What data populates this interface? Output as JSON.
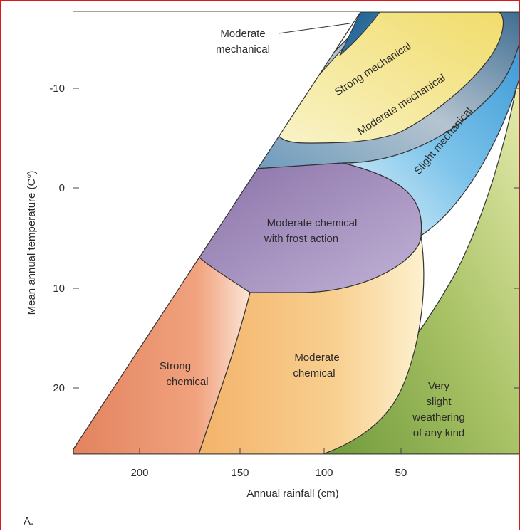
{
  "figure": {
    "panel_letter": "A.",
    "x_axis": {
      "title": "Annual rainfall (cm)",
      "ticks": [
        "200",
        "150",
        "100",
        "50"
      ]
    },
    "y_axis": {
      "title": "Mean annual temperature (C°)",
      "ticks": [
        "-10",
        "0",
        "10",
        "20"
      ]
    },
    "regions": {
      "moderate_mechanical_callout": [
        "Moderate",
        "mechanical"
      ],
      "strong_mechanical": "Strong mechanical",
      "moderate_mechanical": "Moderate mechanical",
      "slight_mechanical": "Slight mechanical",
      "moderate_chemical_frost": [
        "Moderate chemical",
        "with frost action"
      ],
      "strong_chemical": [
        "Strong",
        "chemical"
      ],
      "moderate_chemical": [
        "Moderate",
        "chemical"
      ],
      "very_slight": [
        "Very",
        "slight",
        "weathering",
        "of any kind"
      ]
    },
    "colors": {
      "strong_chemical": "#e7906a",
      "moderate_chemical": "#f5c27a",
      "very_slight": "#a9c266",
      "frost": "#9a86b6",
      "slight_mechanical": "#5fb1e0",
      "moderate_mechanical": "#4f7da0",
      "strong_mechanical": "#f3e38a",
      "border": "#d8181c"
    }
  }
}
